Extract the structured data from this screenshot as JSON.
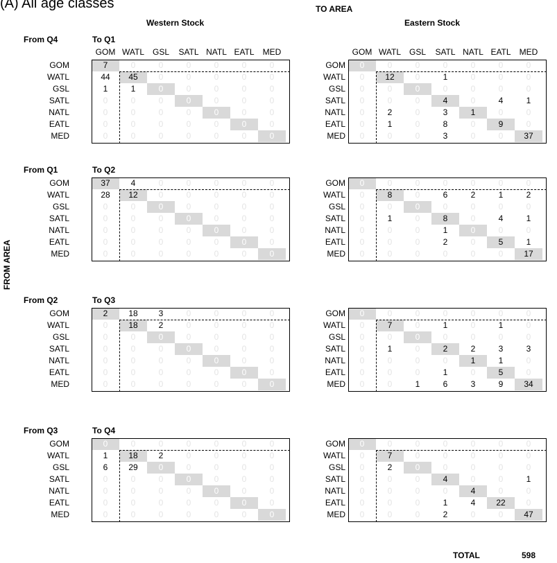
{
  "title": "(A) All age classes",
  "to_area_label": "TO AREA",
  "from_area_label": "FROM AREA",
  "stocks": [
    "Western Stock",
    "Eastern Stock"
  ],
  "areas": [
    "GOM",
    "WATL",
    "GSL",
    "SATL",
    "NATL",
    "EATL",
    "MED"
  ],
  "total_label": "TOTAL",
  "total_value": "598",
  "chart_data": {
    "type": "table",
    "description_rows": "rows = from area, columns = to area",
    "panels": [
      {
        "from": "From Q4",
        "to": "To Q1",
        "western": [
          [
            7,
            0,
            0,
            0,
            0,
            0,
            0
          ],
          [
            44,
            45,
            0,
            0,
            0,
            0,
            0
          ],
          [
            1,
            1,
            0,
            0,
            0,
            0,
            0
          ],
          [
            0,
            0,
            0,
            0,
            0,
            0,
            0
          ],
          [
            0,
            0,
            0,
            0,
            0,
            0,
            0
          ],
          [
            0,
            0,
            0,
            0,
            0,
            0,
            0
          ],
          [
            0,
            0,
            0,
            0,
            0,
            0,
            0
          ]
        ],
        "eastern": [
          [
            0,
            0,
            0,
            0,
            0,
            0,
            0
          ],
          [
            0,
            12,
            0,
            1,
            0,
            0,
            0
          ],
          [
            0,
            0,
            0,
            0,
            0,
            0,
            0
          ],
          [
            0,
            0,
            0,
            4,
            0,
            4,
            1
          ],
          [
            0,
            2,
            0,
            3,
            1,
            0,
            0
          ],
          [
            0,
            1,
            0,
            8,
            0,
            9,
            0
          ],
          [
            0,
            0,
            0,
            3,
            0,
            0,
            37
          ]
        ]
      },
      {
        "from": "From Q1",
        "to": "To Q2",
        "western": [
          [
            37,
            4,
            0,
            0,
            0,
            0,
            0
          ],
          [
            28,
            12,
            0,
            0,
            0,
            0,
            0
          ],
          [
            0,
            0,
            0,
            0,
            0,
            0,
            0
          ],
          [
            0,
            0,
            0,
            0,
            0,
            0,
            0
          ],
          [
            0,
            0,
            0,
            0,
            0,
            0,
            0
          ],
          [
            0,
            0,
            0,
            0,
            0,
            0,
            0
          ],
          [
            0,
            0,
            0,
            0,
            0,
            0,
            0
          ]
        ],
        "eastern": [
          [
            0,
            0,
            0,
            0,
            0,
            0,
            0
          ],
          [
            0,
            8,
            0,
            6,
            2,
            1,
            2
          ],
          [
            0,
            0,
            0,
            0,
            0,
            0,
            0
          ],
          [
            0,
            1,
            0,
            8,
            0,
            4,
            1
          ],
          [
            0,
            0,
            0,
            1,
            0,
            0,
            0
          ],
          [
            0,
            0,
            0,
            2,
            0,
            5,
            1
          ],
          [
            0,
            0,
            0,
            0,
            0,
            0,
            17
          ]
        ]
      },
      {
        "from": "From Q2",
        "to": "To Q3",
        "western": [
          [
            2,
            18,
            3,
            0,
            0,
            0,
            0
          ],
          [
            0,
            18,
            2,
            0,
            0,
            0,
            0
          ],
          [
            0,
            0,
            0,
            0,
            0,
            0,
            0
          ],
          [
            0,
            0,
            0,
            0,
            0,
            0,
            0
          ],
          [
            0,
            0,
            0,
            0,
            0,
            0,
            0
          ],
          [
            0,
            0,
            0,
            0,
            0,
            0,
            0
          ],
          [
            0,
            0,
            0,
            0,
            0,
            0,
            0
          ]
        ],
        "eastern": [
          [
            0,
            0,
            0,
            0,
            0,
            0,
            0
          ],
          [
            0,
            7,
            0,
            1,
            0,
            1,
            0
          ],
          [
            0,
            0,
            0,
            0,
            0,
            0,
            0
          ],
          [
            0,
            1,
            0,
            2,
            2,
            3,
            3
          ],
          [
            0,
            0,
            0,
            0,
            1,
            1,
            0
          ],
          [
            0,
            0,
            0,
            1,
            0,
            5,
            0
          ],
          [
            0,
            0,
            1,
            6,
            3,
            9,
            34
          ]
        ]
      },
      {
        "from": "From Q3",
        "to": "To Q4",
        "western": [
          [
            0,
            0,
            0,
            0,
            0,
            0,
            0
          ],
          [
            1,
            18,
            2,
            0,
            0,
            0,
            0
          ],
          [
            6,
            29,
            0,
            0,
            0,
            0,
            0
          ],
          [
            0,
            0,
            0,
            0,
            0,
            0,
            0
          ],
          [
            0,
            0,
            0,
            0,
            0,
            0,
            0
          ],
          [
            0,
            0,
            0,
            0,
            0,
            0,
            0
          ],
          [
            0,
            0,
            0,
            0,
            0,
            0,
            0
          ]
        ],
        "eastern": [
          [
            0,
            0,
            0,
            0,
            0,
            0,
            0
          ],
          [
            0,
            7,
            0,
            0,
            0,
            0,
            0
          ],
          [
            0,
            2,
            0,
            0,
            0,
            0,
            0
          ],
          [
            0,
            0,
            0,
            4,
            0,
            0,
            1
          ],
          [
            0,
            0,
            0,
            0,
            4,
            0,
            0
          ],
          [
            0,
            0,
            0,
            1,
            4,
            22,
            0
          ],
          [
            0,
            0,
            0,
            2,
            0,
            0,
            47
          ]
        ]
      }
    ]
  }
}
